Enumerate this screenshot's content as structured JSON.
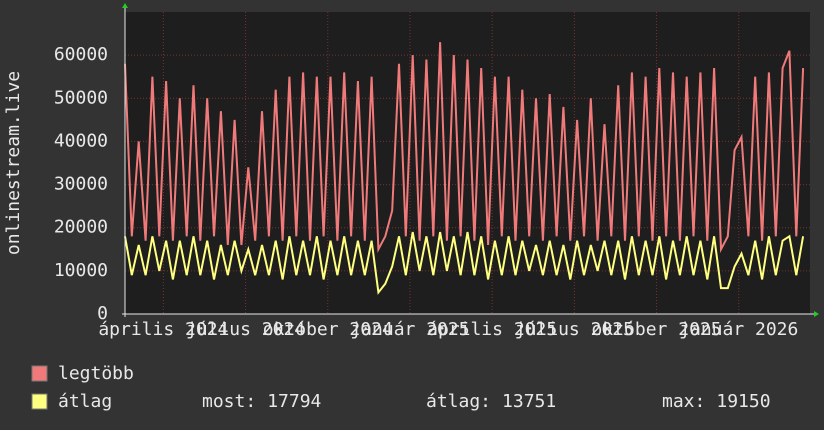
{
  "chart_data": {
    "type": "line",
    "y_label": "onlinestream.live",
    "ylim": [
      0,
      70000
    ],
    "yticks": [
      0,
      10000,
      20000,
      30000,
      40000,
      50000,
      60000
    ],
    "xlim": [
      1.6,
      26.6
    ],
    "xticks": [
      {
        "value": 3,
        "label": "április 2024"
      },
      {
        "value": 6,
        "label": "július 2024"
      },
      {
        "value": 9,
        "label": "október 2024"
      },
      {
        "value": 12,
        "label": "január 2025"
      },
      {
        "value": 15,
        "label": "április 2025"
      },
      {
        "value": 18,
        "label": "július 2025"
      },
      {
        "value": 21,
        "label": "október 2025"
      },
      {
        "value": 24,
        "label": "január 2026"
      }
    ],
    "grid": true,
    "x": [
      1.6,
      1.85,
      2.1,
      2.35,
      2.6,
      2.85,
      3.1,
      3.35,
      3.6,
      3.85,
      4.1,
      4.35,
      4.6,
      4.85,
      5.1,
      5.35,
      5.6,
      5.85,
      6.1,
      6.35,
      6.6,
      6.85,
      7.1,
      7.35,
      7.6,
      7.85,
      8.1,
      8.35,
      8.6,
      8.85,
      9.1,
      9.35,
      9.6,
      9.85,
      10.1,
      10.35,
      10.6,
      10.85,
      11.1,
      11.35,
      11.6,
      11.85,
      12.1,
      12.35,
      12.6,
      12.85,
      13.1,
      13.35,
      13.6,
      13.85,
      14.1,
      14.35,
      14.6,
      14.85,
      15.1,
      15.35,
      15.6,
      15.85,
      16.1,
      16.35,
      16.6,
      16.85,
      17.1,
      17.35,
      17.6,
      17.85,
      18.1,
      18.35,
      18.6,
      18.85,
      19.1,
      19.35,
      19.6,
      19.85,
      20.1,
      20.35,
      20.6,
      20.85,
      21.1,
      21.35,
      21.6,
      21.85,
      22.1,
      22.35,
      22.6,
      22.85,
      23.1,
      23.35,
      23.6,
      23.85,
      24.1,
      24.35,
      24.6,
      24.85,
      25.1,
      25.35,
      25.6,
      25.85,
      26.1,
      26.35
    ],
    "series": [
      {
        "name": "legtöbb",
        "color": "#f07a7a",
        "values": [
          58000,
          18000,
          40000,
          17000,
          55000,
          18000,
          54000,
          17000,
          50000,
          18000,
          53000,
          17000,
          50000,
          18000,
          47000,
          16000,
          45000,
          16000,
          34000,
          17000,
          47000,
          18000,
          52000,
          17000,
          55000,
          18000,
          56000,
          17000,
          55000,
          18000,
          55000,
          17000,
          56000,
          18000,
          54000,
          17000,
          55000,
          15000,
          18000,
          24000,
          58000,
          18000,
          60000,
          17000,
          59000,
          18000,
          63000,
          17000,
          60000,
          18000,
          59000,
          17000,
          57000,
          16000,
          55000,
          18000,
          55000,
          17000,
          52000,
          18000,
          50000,
          17000,
          51000,
          18000,
          48000,
          17000,
          45000,
          18000,
          50000,
          17000,
          44000,
          18000,
          53000,
          17000,
          56000,
          18000,
          55000,
          17000,
          57000,
          18000,
          56000,
          17000,
          55000,
          18000,
          56000,
          17000,
          57000,
          15000,
          18000,
          38000,
          41000,
          18000,
          55000,
          17000,
          56000,
          18000,
          57000,
          61000,
          18000,
          57000
        ]
      },
      {
        "name": "átlag",
        "color": "#ffff80",
        "values": [
          18000,
          9000,
          16000,
          9000,
          18000,
          10000,
          17000,
          8000,
          17000,
          9000,
          18000,
          9000,
          17000,
          8000,
          16000,
          9000,
          17000,
          10000,
          15000,
          9000,
          16000,
          9000,
          17000,
          8000,
          18000,
          9000,
          17000,
          9000,
          18000,
          8000,
          17000,
          9000,
          18000,
          9000,
          17000,
          9000,
          17000,
          5000,
          7000,
          11000,
          18000,
          9000,
          19000,
          10000,
          18000,
          9000,
          19000,
          10000,
          18000,
          9000,
          19000,
          9000,
          18000,
          8000,
          17000,
          9000,
          18000,
          9000,
          17000,
          10000,
          16000,
          9000,
          17000,
          9000,
          16000,
          8000,
          17000,
          9000,
          16000,
          10000,
          17000,
          9000,
          17000,
          8000,
          18000,
          9000,
          17000,
          9000,
          18000,
          8000,
          17000,
          9000,
          18000,
          9000,
          17000,
          8000,
          18000,
          6000,
          6000,
          11000,
          14000,
          9000,
          17000,
          8000,
          18000,
          9000,
          17000,
          18000,
          9000,
          18000
        ]
      }
    ],
    "stats": [
      {
        "label": "most:",
        "value": 17794
      },
      {
        "label": "átlag:",
        "value": 13751
      },
      {
        "label": "max:",
        "value": 19150
      }
    ]
  }
}
